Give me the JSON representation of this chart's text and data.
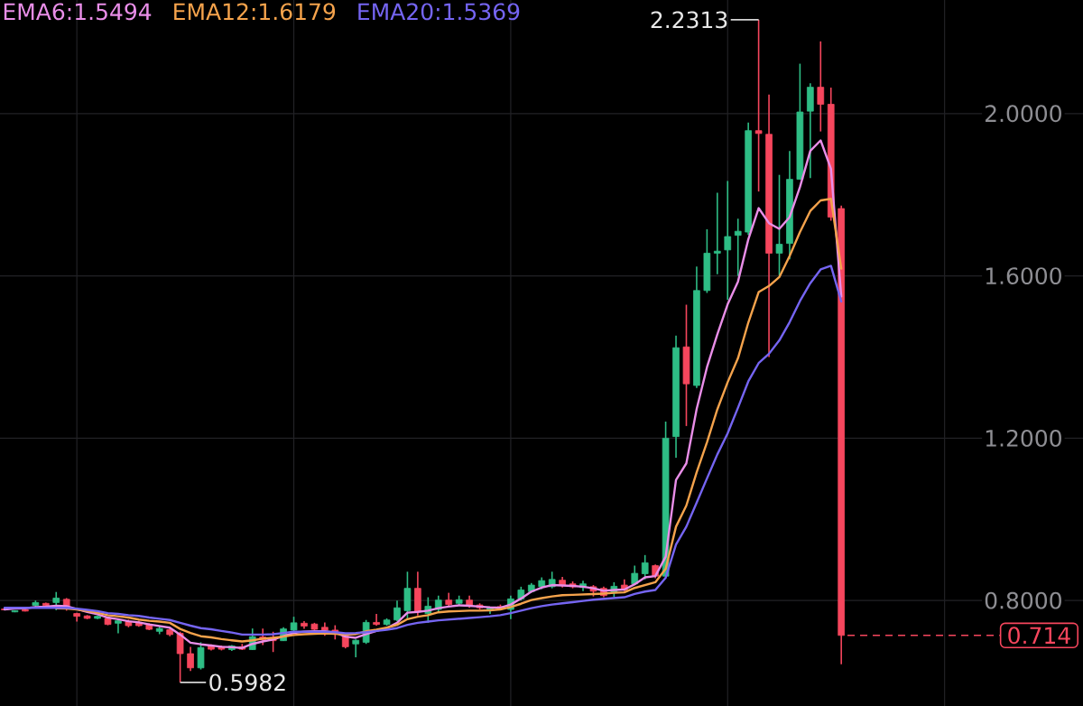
{
  "chart_data": {
    "type": "candlestick",
    "categories": [
      null,
      null,
      null,
      null,
      null,
      null,
      null,
      null,
      null,
      null,
      null,
      null,
      null,
      null,
      null,
      null,
      null,
      null,
      null,
      null,
      null,
      null,
      null,
      null,
      null,
      null,
      null,
      null,
      null,
      null,
      null,
      null,
      null,
      null,
      null,
      null,
      null,
      null,
      null,
      null,
      null,
      null,
      null,
      null,
      null,
      null,
      null,
      null,
      null,
      null,
      null,
      null,
      null,
      null,
      null,
      null,
      null,
      null,
      null,
      null,
      null,
      null,
      null,
      null,
      null,
      null,
      null,
      null,
      null,
      null,
      null,
      null,
      null,
      null,
      null,
      null,
      null,
      null,
      null,
      null,
      null,
      null
    ],
    "ohlc": [
      [
        0.779,
        0.78,
        0.776,
        0.777
      ],
      [
        0.772,
        0.776,
        0.771,
        0.775
      ],
      [
        0.777,
        0.779,
        0.773,
        0.774
      ],
      [
        0.788,
        0.8,
        0.784,
        0.795
      ],
      [
        0.793,
        0.795,
        0.786,
        0.788
      ],
      [
        0.795,
        0.821,
        0.776,
        0.806
      ],
      [
        0.803,
        0.806,
        0.775,
        0.786
      ],
      [
        0.768,
        0.77,
        0.748,
        0.761
      ],
      [
        0.762,
        0.764,
        0.754,
        0.756
      ],
      [
        0.756,
        0.763,
        0.754,
        0.761
      ],
      [
        0.756,
        0.758,
        0.739,
        0.741
      ],
      [
        0.744,
        0.754,
        0.719,
        0.75
      ],
      [
        0.748,
        0.753,
        0.734,
        0.738
      ],
      [
        0.746,
        0.75,
        0.735,
        0.738
      ],
      [
        0.741,
        0.744,
        0.727,
        0.729
      ],
      [
        0.724,
        0.738,
        0.717,
        0.731
      ],
      [
        0.728,
        0.734,
        0.712,
        0.716
      ],
      [
        0.719,
        0.723,
        0.5982,
        0.669
      ],
      [
        0.669,
        0.686,
        0.626,
        0.634
      ],
      [
        0.634,
        0.697,
        0.63,
        0.684
      ],
      [
        0.689,
        0.692,
        0.677,
        0.68
      ],
      [
        0.686,
        0.689,
        0.677,
        0.68
      ],
      [
        0.679,
        0.69,
        0.676,
        0.688
      ],
      [
        0.686,
        0.693,
        0.678,
        0.68
      ],
      [
        0.679,
        0.731,
        0.678,
        0.711
      ],
      [
        0.71,
        0.731,
        0.69,
        0.703
      ],
      [
        0.709,
        0.723,
        0.673,
        0.701
      ],
      [
        0.701,
        0.734,
        0.7,
        0.73
      ],
      [
        0.727,
        0.76,
        0.723,
        0.745
      ],
      [
        0.744,
        0.749,
        0.73,
        0.737
      ],
      [
        0.742,
        0.745,
        0.727,
        0.729
      ],
      [
        0.734,
        0.746,
        0.713,
        0.727
      ],
      [
        0.727,
        0.739,
        0.704,
        0.717
      ],
      [
        0.712,
        0.715,
        0.682,
        0.686
      ],
      [
        0.693,
        0.704,
        0.66,
        0.702
      ],
      [
        0.697,
        0.752,
        0.693,
        0.746
      ],
      [
        0.746,
        0.767,
        0.738,
        0.741
      ],
      [
        0.741,
        0.756,
        0.738,
        0.752
      ],
      [
        0.752,
        0.8,
        0.749,
        0.782
      ],
      [
        0.775,
        0.871,
        0.756,
        0.83
      ],
      [
        0.83,
        0.871,
        0.763,
        0.772
      ],
      [
        0.768,
        0.808,
        0.745,
        0.786
      ],
      [
        0.778,
        0.812,
        0.771,
        0.801
      ],
      [
        0.801,
        0.819,
        0.786,
        0.79
      ],
      [
        0.793,
        0.812,
        0.789,
        0.802
      ],
      [
        0.801,
        0.812,
        0.782,
        0.786
      ],
      [
        0.789,
        0.793,
        0.778,
        0.782
      ],
      [
        0.778,
        0.785,
        0.767,
        0.782
      ],
      [
        0.785,
        0.79,
        0.777,
        0.78
      ],
      [
        0.778,
        0.812,
        0.754,
        0.804
      ],
      [
        0.804,
        0.834,
        0.8,
        0.826
      ],
      [
        0.822,
        0.843,
        0.819,
        0.838
      ],
      [
        0.834,
        0.857,
        0.828,
        0.849
      ],
      [
        0.834,
        0.871,
        0.83,
        0.852
      ],
      [
        0.85,
        0.858,
        0.832,
        0.838
      ],
      [
        0.841,
        0.847,
        0.83,
        0.834
      ],
      [
        0.832,
        0.849,
        0.823,
        0.841
      ],
      [
        0.834,
        0.838,
        0.81,
        0.823
      ],
      [
        0.83,
        0.834,
        0.808,
        0.812
      ],
      [
        0.819,
        0.845,
        0.808,
        0.835
      ],
      [
        0.838,
        0.852,
        0.823,
        0.826
      ],
      [
        0.841,
        0.886,
        0.838,
        0.867
      ],
      [
        0.866,
        0.912,
        0.852,
        0.893
      ],
      [
        0.886,
        0.889,
        0.855,
        0.86
      ],
      [
        0.86,
        1.241,
        0.855,
        1.2
      ],
      [
        1.204,
        1.453,
        1.152,
        1.423
      ],
      [
        1.425,
        1.529,
        1.23,
        1.334
      ],
      [
        1.33,
        1.623,
        1.324,
        1.564
      ],
      [
        1.564,
        1.715,
        1.558,
        1.656
      ],
      [
        1.656,
        1.805,
        1.604,
        1.661
      ],
      [
        1.664,
        1.834,
        1.541,
        1.697
      ],
      [
        1.7,
        1.741,
        1.6,
        1.71
      ],
      [
        1.708,
        1.978,
        1.701,
        1.958
      ],
      [
        1.958,
        2.2313,
        1.808,
        1.951
      ],
      [
        1.949,
        2.047,
        1.4,
        1.656
      ],
      [
        1.656,
        1.849,
        1.601,
        1.678
      ],
      [
        1.68,
        1.908,
        1.641,
        1.838
      ],
      [
        1.838,
        2.123,
        1.838,
        2.004
      ],
      [
        2.006,
        2.075,
        1.841,
        2.065
      ],
      [
        2.065,
        2.178,
        1.956,
        2.023
      ],
      [
        2.023,
        2.064,
        1.736,
        1.745
      ],
      [
        1.766,
        1.773,
        0.643,
        0.714
      ]
    ],
    "colors": [
      "#f6465d",
      "#2ebd85",
      "#f6465d",
      "#2ebd85",
      "#f6465d",
      "#2ebd85",
      "#f6465d",
      "#f6465d",
      "#f6465d",
      "#2ebd85",
      "#f6465d",
      "#2ebd85",
      "#f6465d",
      "#f6465d",
      "#f6465d",
      "#2ebd85",
      "#f6465d",
      "#f6465d",
      "#f6465d",
      "#2ebd85",
      "#f6465d",
      "#f6465d",
      "#2ebd85",
      "#f6465d",
      "#2ebd85",
      "#f6465d",
      "#f6465d",
      "#2ebd85",
      "#2ebd85",
      "#f6465d",
      "#f6465d",
      "#f6465d",
      "#f6465d",
      "#f6465d",
      "#2ebd85",
      "#2ebd85",
      "#f6465d",
      "#2ebd85",
      "#2ebd85",
      "#2ebd85",
      "#f6465d",
      "#2ebd85",
      "#2ebd85",
      "#f6465d",
      "#2ebd85",
      "#f6465d",
      "#f6465d",
      "#2ebd85",
      "#f6465d",
      "#2ebd85",
      "#2ebd85",
      "#2ebd85",
      "#2ebd85",
      "#2ebd85",
      "#f6465d",
      "#f6465d",
      "#2ebd85",
      "#f6465d",
      "#f6465d",
      "#2ebd85",
      "#f6465d",
      "#2ebd85",
      "#2ebd85",
      "#f6465d",
      "#2ebd85",
      "#2ebd85",
      "#f6465d",
      "#2ebd85",
      "#2ebd85",
      "#2ebd85",
      "#2ebd85",
      "#2ebd85",
      "#2ebd85",
      "#f6465d",
      "#f6465d",
      "#2ebd85",
      "#2ebd85",
      "#2ebd85",
      "#2ebd85",
      "#f6465d",
      "#f6465d",
      "#f6465d"
    ],
    "series": [
      {
        "name": "EMA6:1.5494",
        "type": "line",
        "color": "#e98ee8",
        "values": [
          0.778,
          0.78,
          0.781,
          0.784,
          0.785,
          0.787,
          0.786,
          0.779,
          0.772,
          0.766,
          0.758,
          0.754,
          0.749,
          0.746,
          0.741,
          0.737,
          0.733,
          0.716,
          0.696,
          0.692,
          0.689,
          0.686,
          0.685,
          0.683,
          0.693,
          0.699,
          0.704,
          0.712,
          0.72,
          0.723,
          0.724,
          0.724,
          0.721,
          0.711,
          0.708,
          0.717,
          0.725,
          0.732,
          0.745,
          0.77,
          0.772,
          0.775,
          0.781,
          0.785,
          0.788,
          0.787,
          0.785,
          0.783,
          0.782,
          0.79,
          0.805,
          0.822,
          0.832,
          0.838,
          0.837,
          0.836,
          0.834,
          0.83,
          0.824,
          0.826,
          0.827,
          0.84,
          0.857,
          0.86,
          0.908,
          1.097,
          1.138,
          1.272,
          1.375,
          1.456,
          1.53,
          1.586,
          1.69,
          1.767,
          1.73,
          1.716,
          1.745,
          1.819,
          1.908,
          1.934,
          1.864,
          1.5494
        ]
      },
      {
        "name": "EMA12:1.6179",
        "type": "line",
        "color": "#f5a34c",
        "values": [
          null,
          null,
          null,
          null,
          null,
          0.781,
          0.78,
          0.778,
          0.774,
          0.77,
          0.764,
          0.761,
          0.758,
          0.753,
          0.75,
          0.748,
          0.745,
          0.73,
          0.72,
          0.712,
          0.709,
          0.705,
          0.702,
          0.699,
          0.702,
          0.706,
          0.708,
          0.711,
          0.715,
          0.717,
          0.718,
          0.719,
          0.718,
          0.716,
          0.717,
          0.724,
          0.728,
          0.733,
          0.74,
          0.754,
          0.76,
          0.764,
          0.771,
          0.773,
          0.774,
          0.775,
          0.775,
          0.776,
          0.778,
          0.784,
          0.792,
          0.801,
          0.806,
          0.81,
          0.813,
          0.814,
          0.815,
          0.816,
          0.817,
          0.819,
          0.82,
          0.831,
          0.838,
          0.845,
          0.878,
          0.982,
          1.034,
          1.116,
          1.19,
          1.271,
          1.338,
          1.397,
          1.485,
          1.56,
          1.575,
          1.597,
          1.649,
          1.708,
          1.76,
          1.786,
          1.79,
          1.6179
        ]
      },
      {
        "name": "EMA20:1.5369",
        "type": "line",
        "color": "#7565f2",
        "values": [
          0.782,
          0.782,
          0.782,
          0.782,
          0.782,
          0.782,
          0.782,
          0.78,
          0.777,
          0.774,
          0.769,
          0.767,
          0.764,
          0.762,
          0.758,
          0.755,
          0.752,
          0.745,
          0.738,
          0.732,
          0.729,
          0.725,
          0.721,
          0.716,
          0.716,
          0.716,
          0.717,
          0.72,
          0.723,
          0.723,
          0.723,
          0.723,
          0.722,
          0.719,
          0.72,
          0.722,
          0.725,
          0.728,
          0.732,
          0.74,
          0.745,
          0.748,
          0.751,
          0.753,
          0.755,
          0.757,
          0.759,
          0.761,
          0.764,
          0.769,
          0.775,
          0.781,
          0.786,
          0.79,
          0.793,
          0.796,
          0.799,
          0.802,
          0.804,
          0.806,
          0.808,
          0.816,
          0.822,
          0.826,
          0.856,
          0.938,
          0.982,
          1.041,
          1.101,
          1.16,
          1.212,
          1.275,
          1.34,
          1.385,
          1.408,
          1.441,
          1.486,
          1.538,
          1.582,
          1.616,
          1.625,
          1.5369
        ]
      }
    ],
    "ylim": [
      0.54,
      2.28
    ],
    "yticks": [
      {
        "value": 0.8,
        "label": "0.8000"
      },
      {
        "value": 1.2,
        "label": "1.2000"
      },
      {
        "value": 1.6,
        "label": "1.6000"
      },
      {
        "value": 2.0,
        "label": "2.0000"
      }
    ],
    "tick_labels": "y",
    "grid": true,
    "legend": "top left",
    "annotations": [
      "2.2313",
      "0.5982",
      "0.714"
    ]
  }
}
